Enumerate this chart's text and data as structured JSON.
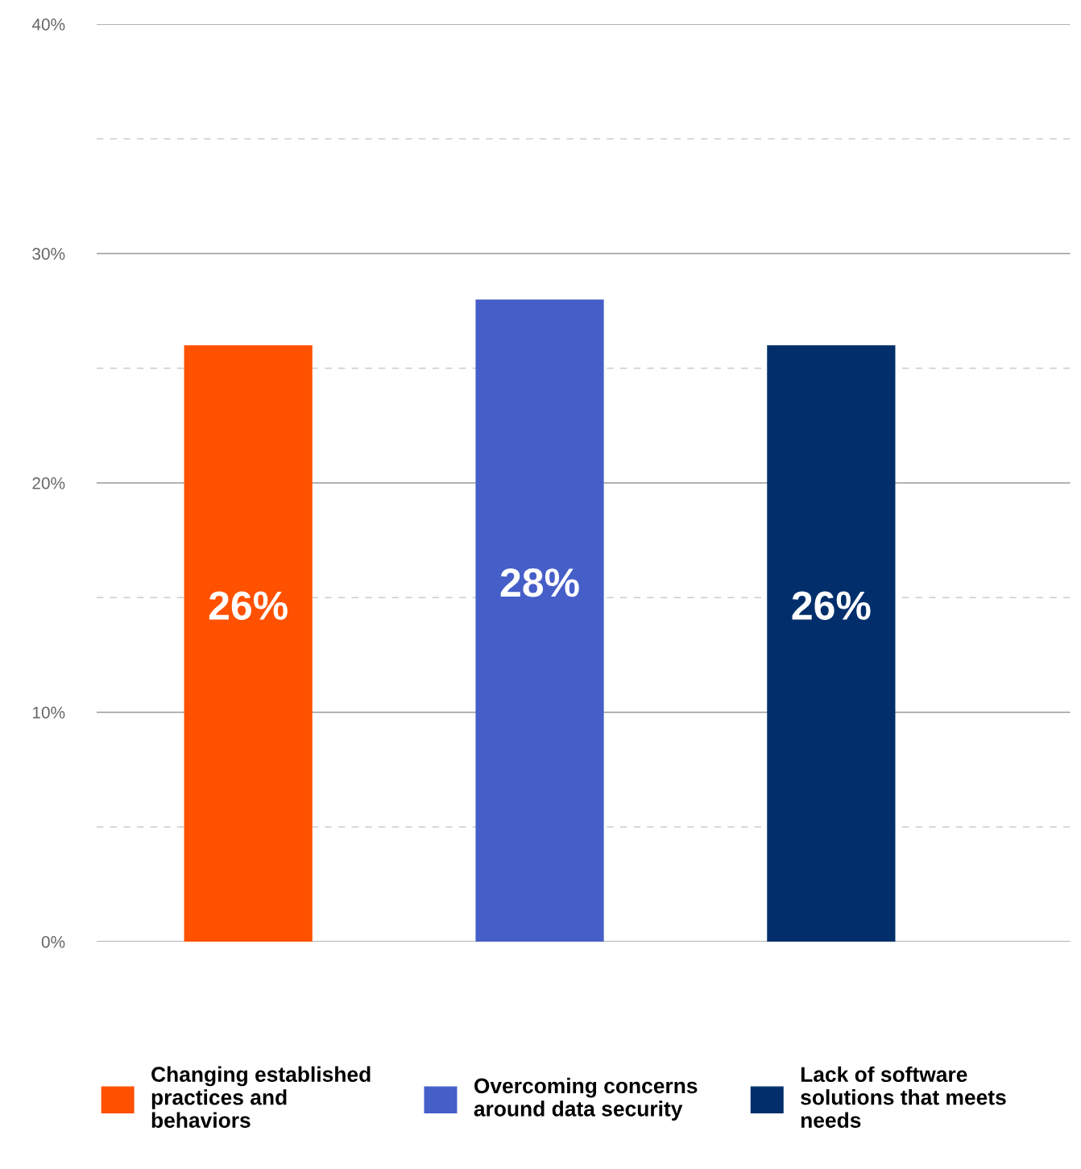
{
  "chart_data": {
    "type": "bar",
    "categories": [
      null,
      null,
      null
    ],
    "series": [
      {
        "name": "Changing established practices and behaviors",
        "color": "#ff5100",
        "values": [
          26,
          null,
          null
        ]
      },
      {
        "name": "Overcoming concerns around data security",
        "color": "#465ec8",
        "values": [
          null,
          28,
          null
        ]
      },
      {
        "name": "Lack of software solutions that meets needs",
        "color": "#022f6b",
        "values": [
          null,
          null,
          26
        ]
      }
    ],
    "ylim": [
      0,
      40
    ],
    "yticks": [
      {
        "value": 0,
        "label": "0%"
      },
      {
        "value": 5,
        "label": null
      },
      {
        "value": 10,
        "label": "10%"
      },
      {
        "value": 15,
        "label": null
      },
      {
        "value": 20,
        "label": "20%"
      },
      {
        "value": 25,
        "label": null
      },
      {
        "value": 30,
        "label": "30%"
      },
      {
        "value": 35,
        "label": null
      },
      {
        "value": 40,
        "label": "40%"
      }
    ],
    "value_labels": [
      "26%",
      "28%",
      "26%"
    ],
    "grid": "y",
    "legend": "bottom"
  }
}
